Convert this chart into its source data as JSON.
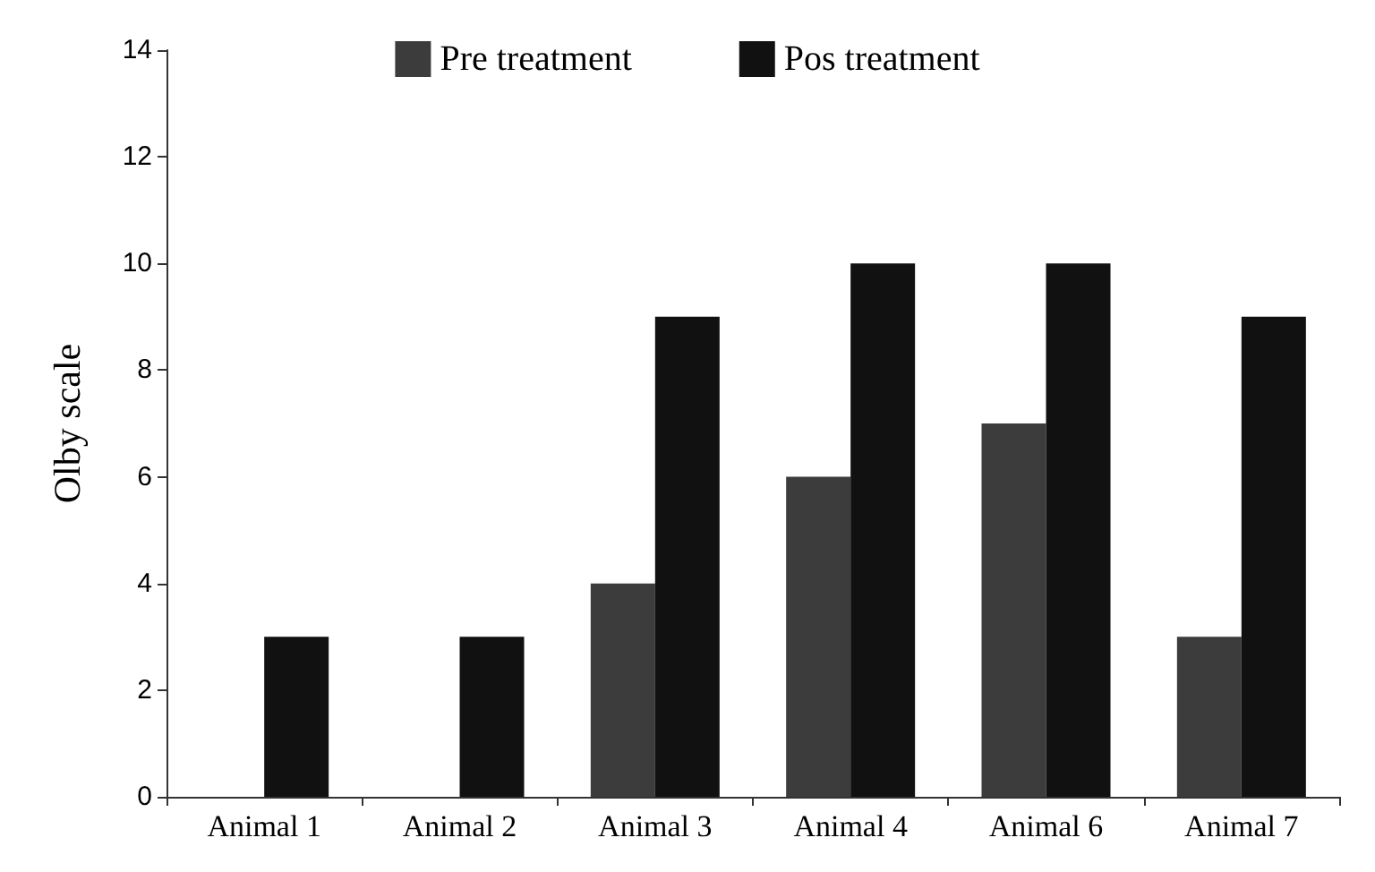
{
  "chart_data": {
    "type": "bar",
    "ylabel": "Olby scale",
    "categories": [
      "Animal 1",
      "Animal 2",
      "Animal 3",
      "Animal 4",
      "Animal 6",
      "Animal 7"
    ],
    "series": [
      {
        "name": "Pre treatment",
        "color": "#3c3c3c",
        "values": [
          0,
          0,
          4,
          6,
          7,
          3
        ]
      },
      {
        "name": "Pos treatment",
        "color": "#111111",
        "values": [
          3,
          3,
          9,
          10,
          10,
          9
        ]
      }
    ],
    "ylim": [
      0,
      14
    ],
    "yticks": [
      0,
      2,
      4,
      6,
      8,
      10,
      12,
      14
    ],
    "grid": false,
    "legend": "top"
  }
}
